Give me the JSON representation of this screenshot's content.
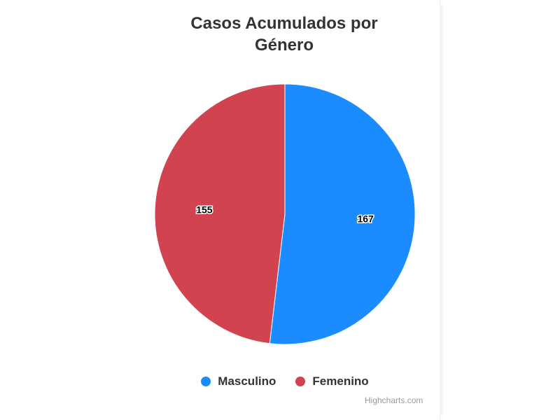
{
  "chart_data": {
    "type": "pie",
    "title": "Casos Acumulados por Género",
    "slices": [
      {
        "name": "Masculino",
        "value": 167,
        "color": "#1a8cff"
      },
      {
        "name": "Femenino",
        "value": 155,
        "color": "#d1434f"
      }
    ],
    "legend_position": "bottom-center",
    "data_labels": true
  },
  "credits": "Highcharts.com"
}
